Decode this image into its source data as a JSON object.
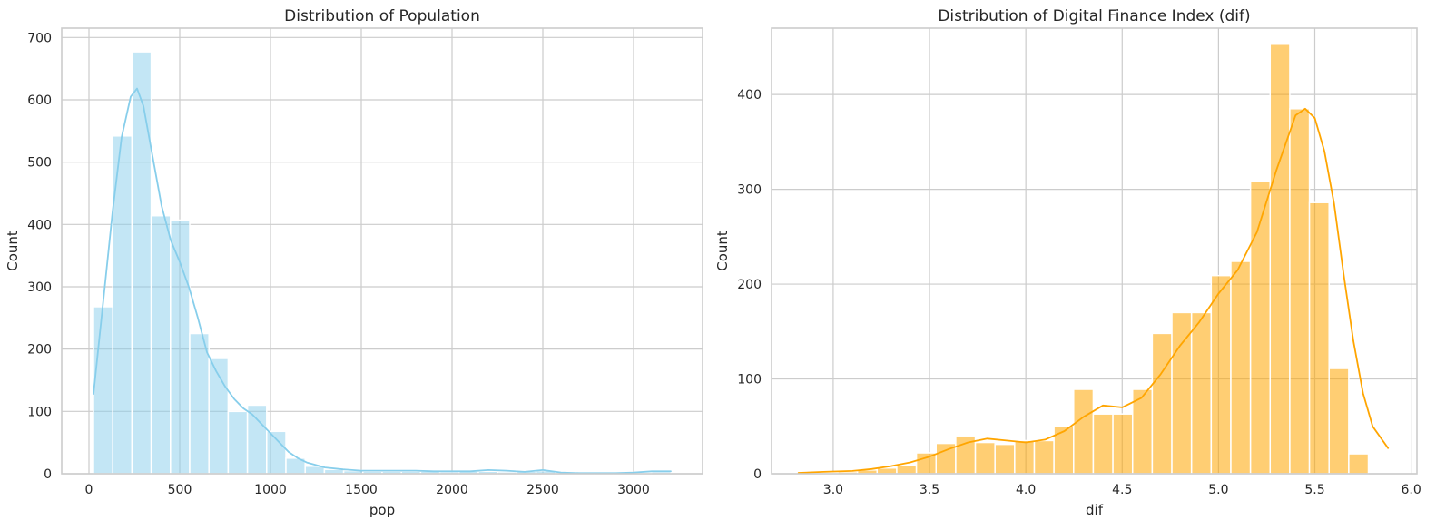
{
  "chart_data": [
    {
      "type": "bar",
      "title": "Distribution of Population",
      "xlabel": "pop",
      "ylabel": "Count",
      "xlim": [
        -150,
        3380
      ],
      "ylim": [
        0,
        715
      ],
      "xticks": [
        0,
        500,
        1000,
        1500,
        2000,
        2500,
        3000
      ],
      "yticks": [
        0,
        100,
        200,
        300,
        400,
        500,
        600,
        700
      ],
      "grid": true,
      "legend": "none",
      "color": "#87ceeb",
      "kde_color": "#87ceeb",
      "bin_edges": [
        25,
        131,
        237,
        343,
        449,
        555,
        661,
        767,
        873,
        979,
        1085,
        1191,
        1297,
        1403,
        1509,
        1615,
        1721,
        1827,
        1933,
        2039,
        2145,
        2251,
        2357,
        2463,
        2569,
        2675,
        2781,
        2887,
        2993,
        3099,
        3205
      ],
      "counts": [
        268,
        542,
        677,
        414,
        407,
        225,
        185,
        100,
        110,
        68,
        25,
        12,
        7,
        5,
        4,
        4,
        4,
        4,
        3,
        4,
        4,
        3,
        4,
        5,
        2,
        2,
        1,
        1,
        2,
        3
      ],
      "kde": {
        "x": [
          25,
          80,
          130,
          180,
          230,
          265,
          300,
          350,
          400,
          450,
          500,
          550,
          600,
          650,
          700,
          750,
          800,
          850,
          900,
          950,
          1000,
          1050,
          1100,
          1150,
          1200,
          1300,
          1400,
          1500,
          1600,
          1700,
          1800,
          1900,
          2000,
          2100,
          2200,
          2300,
          2400,
          2500,
          2600,
          2700,
          2800,
          2900,
          3000,
          3100,
          3205
        ],
        "y": [
          128,
          280,
          420,
          540,
          605,
          618,
          590,
          510,
          430,
          375,
          340,
          300,
          250,
          195,
          165,
          140,
          120,
          105,
          95,
          80,
          65,
          50,
          35,
          25,
          18,
          10,
          7,
          5,
          5,
          5,
          5,
          4,
          4,
          4,
          6,
          5,
          3,
          6,
          2,
          1,
          1,
          1,
          2,
          4,
          4
        ]
      }
    },
    {
      "type": "bar",
      "title": "Distribution of Digital Finance Index (dif)",
      "xlabel": "dif",
      "ylabel": "Count",
      "xlim": [
        2.68,
        6.03
      ],
      "ylim": [
        0,
        470
      ],
      "xticks": [
        "3.0",
        "3.5",
        "4.0",
        "4.5",
        "5.0",
        "5.5",
        "6.0"
      ],
      "yticks": [
        0,
        100,
        200,
        300,
        400
      ],
      "grid": true,
      "legend": "none",
      "color": "#ffa500",
      "kde_color": "#ffa500",
      "bin_edges": [
        2.82,
        2.922,
        3.024,
        3.126,
        3.228,
        3.33,
        3.432,
        3.534,
        3.636,
        3.738,
        3.84,
        3.942,
        4.044,
        4.146,
        4.248,
        4.35,
        4.452,
        4.554,
        4.656,
        4.758,
        4.86,
        4.962,
        5.064,
        5.166,
        5.268,
        5.37,
        5.472,
        5.574,
        5.676,
        5.778,
        5.88
      ],
      "counts": [
        1,
        1,
        2,
        4,
        6,
        9,
        22,
        32,
        40,
        33,
        31,
        35,
        35,
        50,
        89,
        63,
        63,
        89,
        148,
        170,
        170,
        209,
        224,
        308,
        453,
        385,
        286,
        111,
        21,
        0
      ],
      "kde": {
        "x": [
          2.82,
          2.95,
          3.1,
          3.2,
          3.3,
          3.4,
          3.5,
          3.6,
          3.7,
          3.8,
          3.9,
          4.0,
          4.1,
          4.2,
          4.3,
          4.4,
          4.5,
          4.6,
          4.7,
          4.8,
          4.9,
          5.0,
          5.1,
          5.2,
          5.3,
          5.4,
          5.45,
          5.5,
          5.55,
          5.6,
          5.65,
          5.7,
          5.75,
          5.8,
          5.88
        ],
        "y": [
          1,
          2,
          3,
          5,
          8,
          12,
          18,
          26,
          33,
          37,
          35,
          33,
          36,
          45,
          60,
          72,
          70,
          80,
          105,
          135,
          160,
          190,
          215,
          255,
          320,
          378,
          385,
          375,
          340,
          285,
          210,
          140,
          85,
          50,
          27
        ]
      }
    }
  ]
}
